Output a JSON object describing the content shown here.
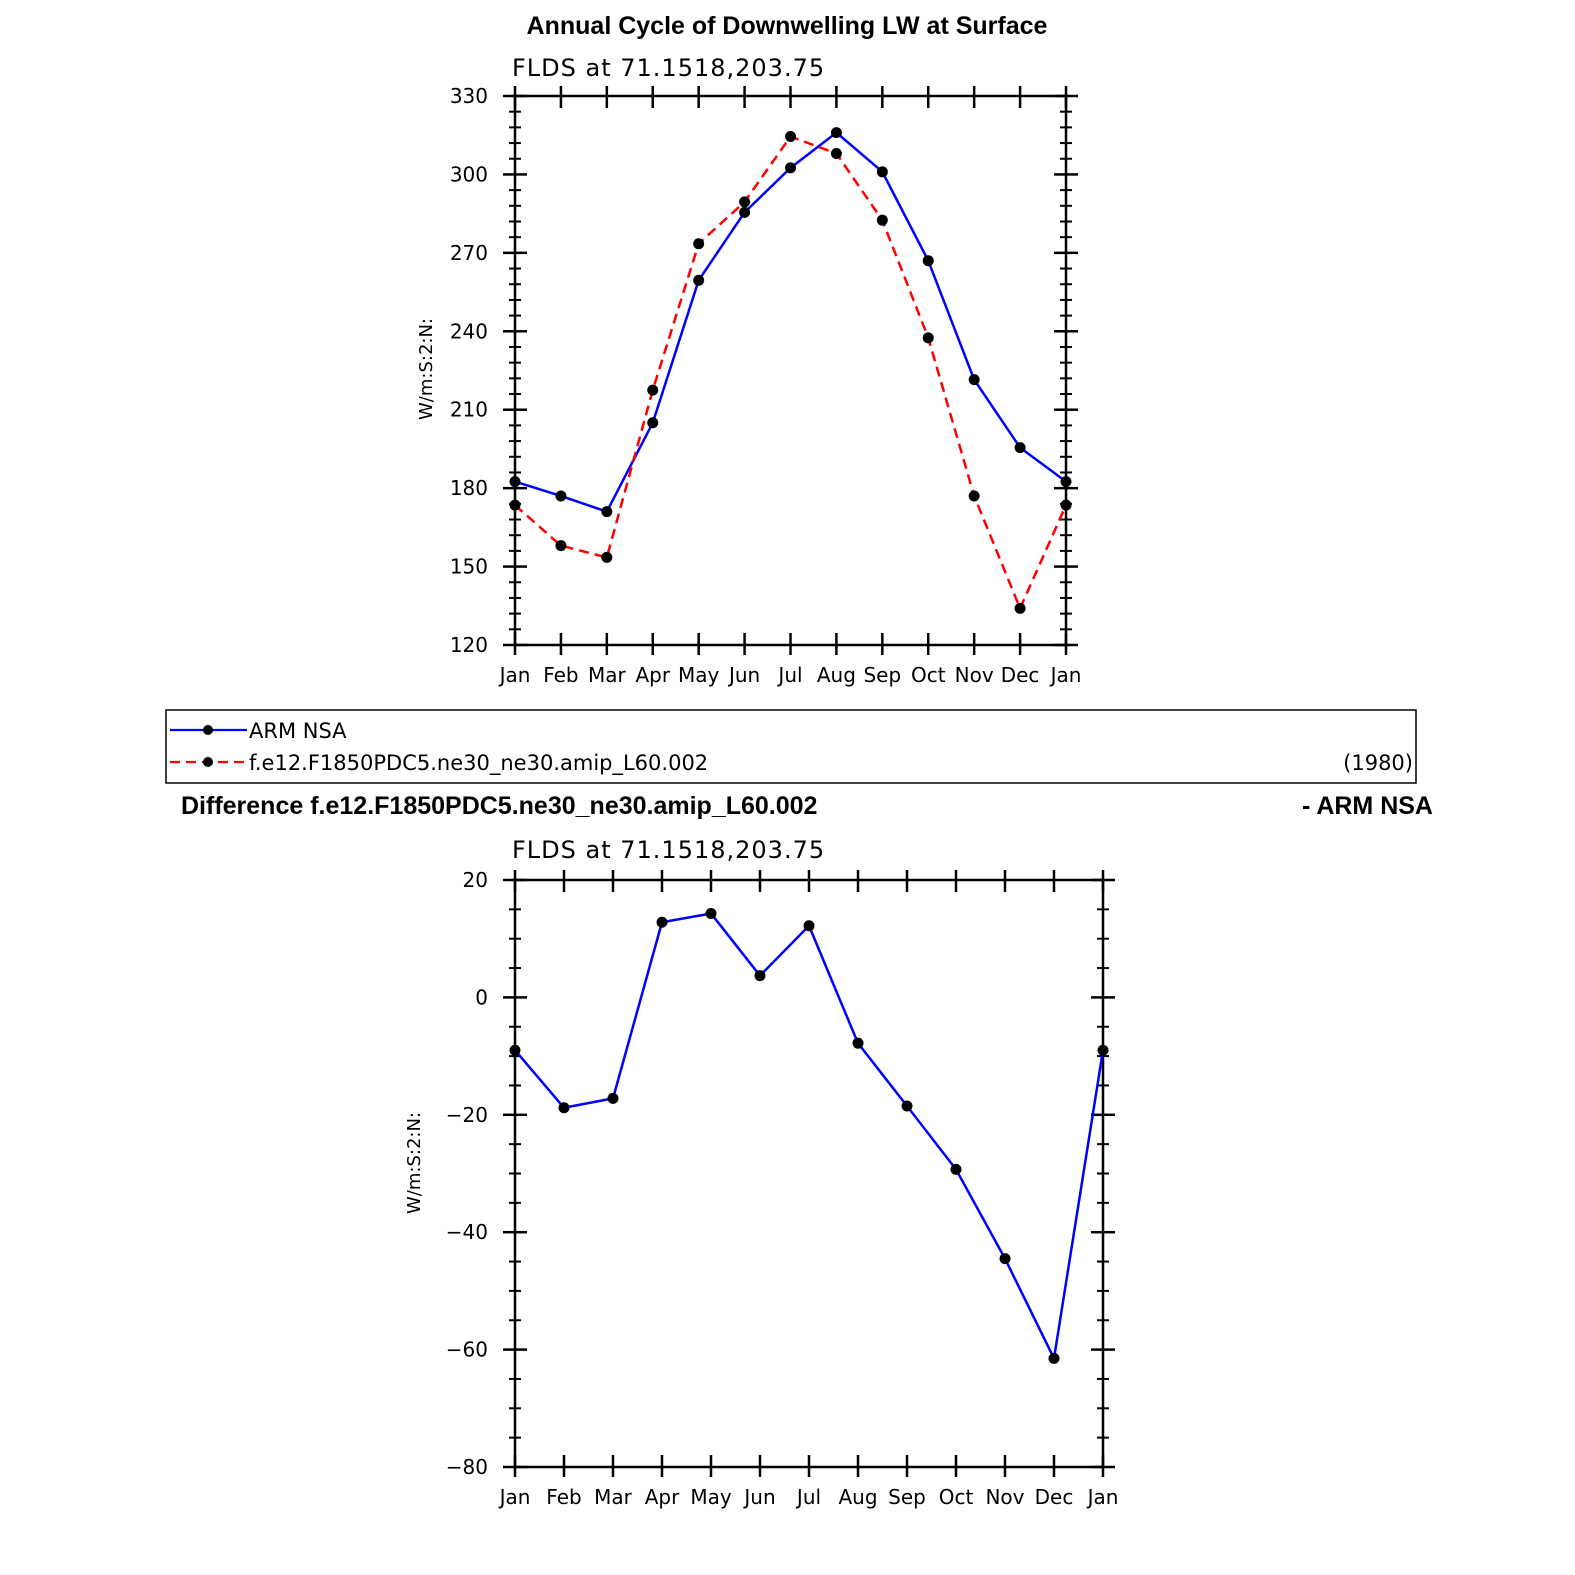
{
  "figure_title": "Annual Cycle of Downwelling LW at Surface",
  "difference_title_left": "Difference f.e12.F1850PDC5.ne30_ne30.amip_L60.002",
  "difference_title_right": "- ARM NSA",
  "colors": {
    "obs": "#0000ff",
    "model": "#ff0000",
    "marker": "#000000"
  },
  "legend": {
    "entries": [
      {
        "label": "ARM NSA",
        "color": "#0000ff",
        "style": "solid"
      },
      {
        "label": "f.e12.F1850PDC5.ne30_ne30.amip_L60.002",
        "color": "#ff0000",
        "style": "dashed"
      }
    ],
    "year": "(1980)"
  },
  "chart_data": [
    {
      "type": "line",
      "title": "FLDS at 71.1518,203.75",
      "ylabel": "W/m:S:2:N:",
      "xlabel": "",
      "categories": [
        "Jan",
        "Feb",
        "Mar",
        "Apr",
        "May",
        "Jun",
        "Jul",
        "Aug",
        "Sep",
        "Oct",
        "Nov",
        "Dec",
        "Jan"
      ],
      "ylim": [
        120,
        330
      ],
      "yticks": [
        120,
        150,
        180,
        210,
        240,
        270,
        300,
        330
      ],
      "series": [
        {
          "name": "ARM NSA",
          "color": "#0000ff",
          "style": "solid",
          "values": [
            182.5,
            177,
            171,
            205,
            259.5,
            285.5,
            302.5,
            316,
            301,
            267,
            221.5,
            195.5,
            182.5
          ]
        },
        {
          "name": "f.e12.F1850PDC5.ne30_ne30.amip_L60.002",
          "color": "#ff0000",
          "style": "dashed",
          "values": [
            173.5,
            158,
            153.5,
            217.5,
            273.5,
            289.5,
            314.5,
            308,
            282.5,
            237.5,
            177,
            134,
            173.5
          ]
        }
      ]
    },
    {
      "type": "line",
      "title": "FLDS at 71.1518,203.75",
      "ylabel": "W/m:S:2:N:",
      "xlabel": "",
      "categories": [
        "Jan",
        "Feb",
        "Mar",
        "Apr",
        "May",
        "Jun",
        "Jul",
        "Aug",
        "Sep",
        "Oct",
        "Nov",
        "Dec",
        "Jan"
      ],
      "ylim": [
        -80,
        20
      ],
      "yticks": [
        -80,
        -60,
        -40,
        -20,
        0,
        20
      ],
      "series": [
        {
          "color": "#0000ff",
          "style": "solid",
          "values": [
            -9,
            -18.8,
            -17.2,
            12.8,
            14.3,
            3.7,
            12.2,
            -7.8,
            -18.5,
            -29.3,
            -44.5,
            -61.5,
            -9
          ]
        }
      ]
    }
  ]
}
